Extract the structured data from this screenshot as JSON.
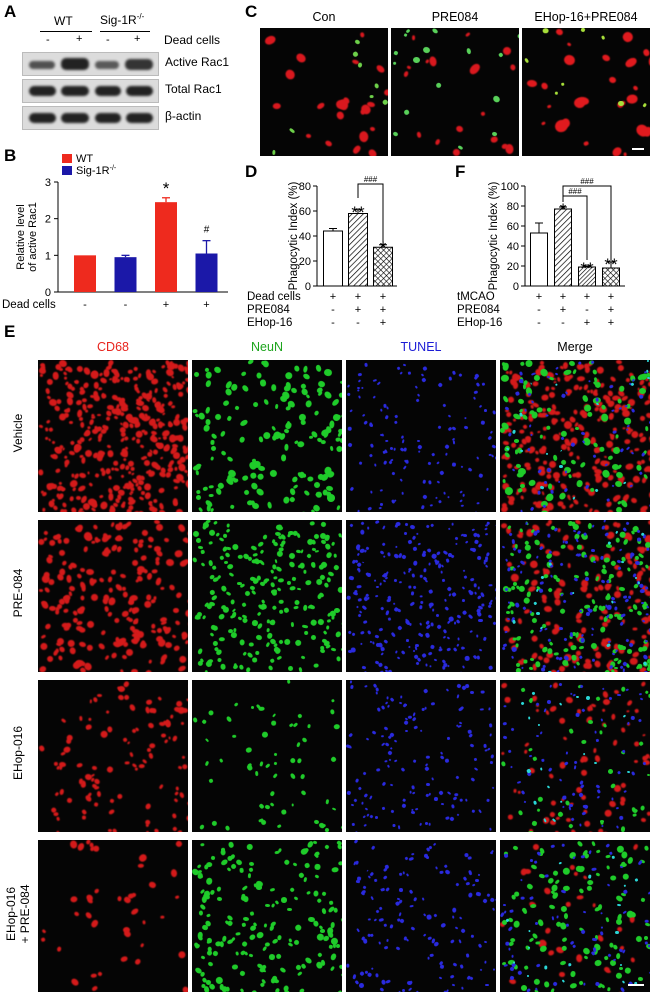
{
  "panels": {
    "A": "A",
    "B": "B",
    "C": "C",
    "D": "D",
    "E": "E",
    "F": "F"
  },
  "panelA": {
    "groups": [
      "WT",
      "Sig-1R"
    ],
    "group2_sup": "-/-",
    "dead_cells_label": "Dead cells",
    "signs": [
      "-",
      "+",
      "-",
      "+"
    ],
    "rows": [
      "Active Rac1",
      "Total Rac1",
      "β-actin"
    ]
  },
  "panelC": {
    "titles": [
      "Con",
      "PRE084",
      "EHop-16+PRE084"
    ]
  },
  "panelE": {
    "columns": [
      "CD68",
      "NeuN",
      "TUNEL",
      "Merge"
    ],
    "column_colors": [
      "#e8241d",
      "#1ea51e",
      "#1c1cd6",
      "#000000"
    ],
    "rows": [
      "Vehicle",
      "PRE-084",
      "EHop-016",
      "EHop-016",
      "+ PRE-084"
    ]
  },
  "chart_data": [
    {
      "id": "B",
      "type": "bar",
      "ylabel": "Relative level of active Rac1",
      "ylabel_lines": [
        "Relative level",
        "of active Rac1"
      ],
      "ylim": [
        0,
        3
      ],
      "yticks": [
        0,
        1,
        2,
        3
      ],
      "legend": [
        {
          "name": "WT",
          "color": "#ee2a1e"
        },
        {
          "name": "Sig-1R",
          "sup": "-/-",
          "color": "#1b18a8"
        }
      ],
      "row_label": "Dead cells",
      "row_signs": [
        "-",
        "-",
        "+",
        "+"
      ],
      "bars": [
        {
          "value": 1.0,
          "error": 0.0,
          "color": "#ee2a1e",
          "annotation": ""
        },
        {
          "value": 0.95,
          "error": 0.05,
          "color": "#1b18a8",
          "annotation": ""
        },
        {
          "value": 2.45,
          "error": 0.12,
          "color": "#ee2a1e",
          "annotation": "*"
        },
        {
          "value": 1.05,
          "error": 0.35,
          "color": "#1b18a8",
          "annotation": "#"
        }
      ]
    },
    {
      "id": "D",
      "type": "bar",
      "ylabel": "Phagocytic Index (%)",
      "ylim": [
        0,
        80
      ],
      "yticks": [
        0,
        20,
        40,
        60,
        80
      ],
      "rows": [
        {
          "label": "Dead cells",
          "signs": [
            "+",
            "+",
            "+"
          ]
        },
        {
          "label": "PRE084",
          "signs": [
            "-",
            "+",
            "+"
          ]
        },
        {
          "label": "EHop-16",
          "signs": [
            "-",
            "-",
            "+"
          ]
        }
      ],
      "bars": [
        {
          "value": 44,
          "error": 2,
          "pattern": "open",
          "annotation": ""
        },
        {
          "value": 58,
          "error": 3,
          "pattern": "hatch",
          "annotation": "**"
        },
        {
          "value": 31,
          "error": 2,
          "pattern": "cross",
          "annotation": "*"
        }
      ],
      "brackets": [
        {
          "from": 1,
          "to": 2,
          "label": "###"
        }
      ]
    },
    {
      "id": "F",
      "type": "bar",
      "ylabel": "Phagocytic Index (%)",
      "ylim": [
        0,
        100
      ],
      "yticks": [
        0,
        20,
        40,
        60,
        80,
        100
      ],
      "rows": [
        {
          "label": "tMCAO",
          "signs": [
            "+",
            "+",
            "+",
            "+"
          ]
        },
        {
          "label": "PRE084",
          "signs": [
            "-",
            "+",
            "-",
            "+"
          ]
        },
        {
          "label": "EHop-16",
          "signs": [
            "-",
            "-",
            "+",
            "+"
          ]
        }
      ],
      "bars": [
        {
          "value": 53,
          "error": 10,
          "pattern": "open",
          "annotation": ""
        },
        {
          "value": 77,
          "error": 2,
          "pattern": "hatch",
          "annotation": "*"
        },
        {
          "value": 19,
          "error": 1,
          "pattern": "hatchdense",
          "annotation": "**"
        },
        {
          "value": 18,
          "error": 6,
          "pattern": "cross",
          "annotation": "**"
        }
      ],
      "brackets": [
        {
          "from": 1,
          "to": 2,
          "label": "###"
        },
        {
          "from": 1,
          "to": 3,
          "label": "###"
        }
      ]
    }
  ]
}
